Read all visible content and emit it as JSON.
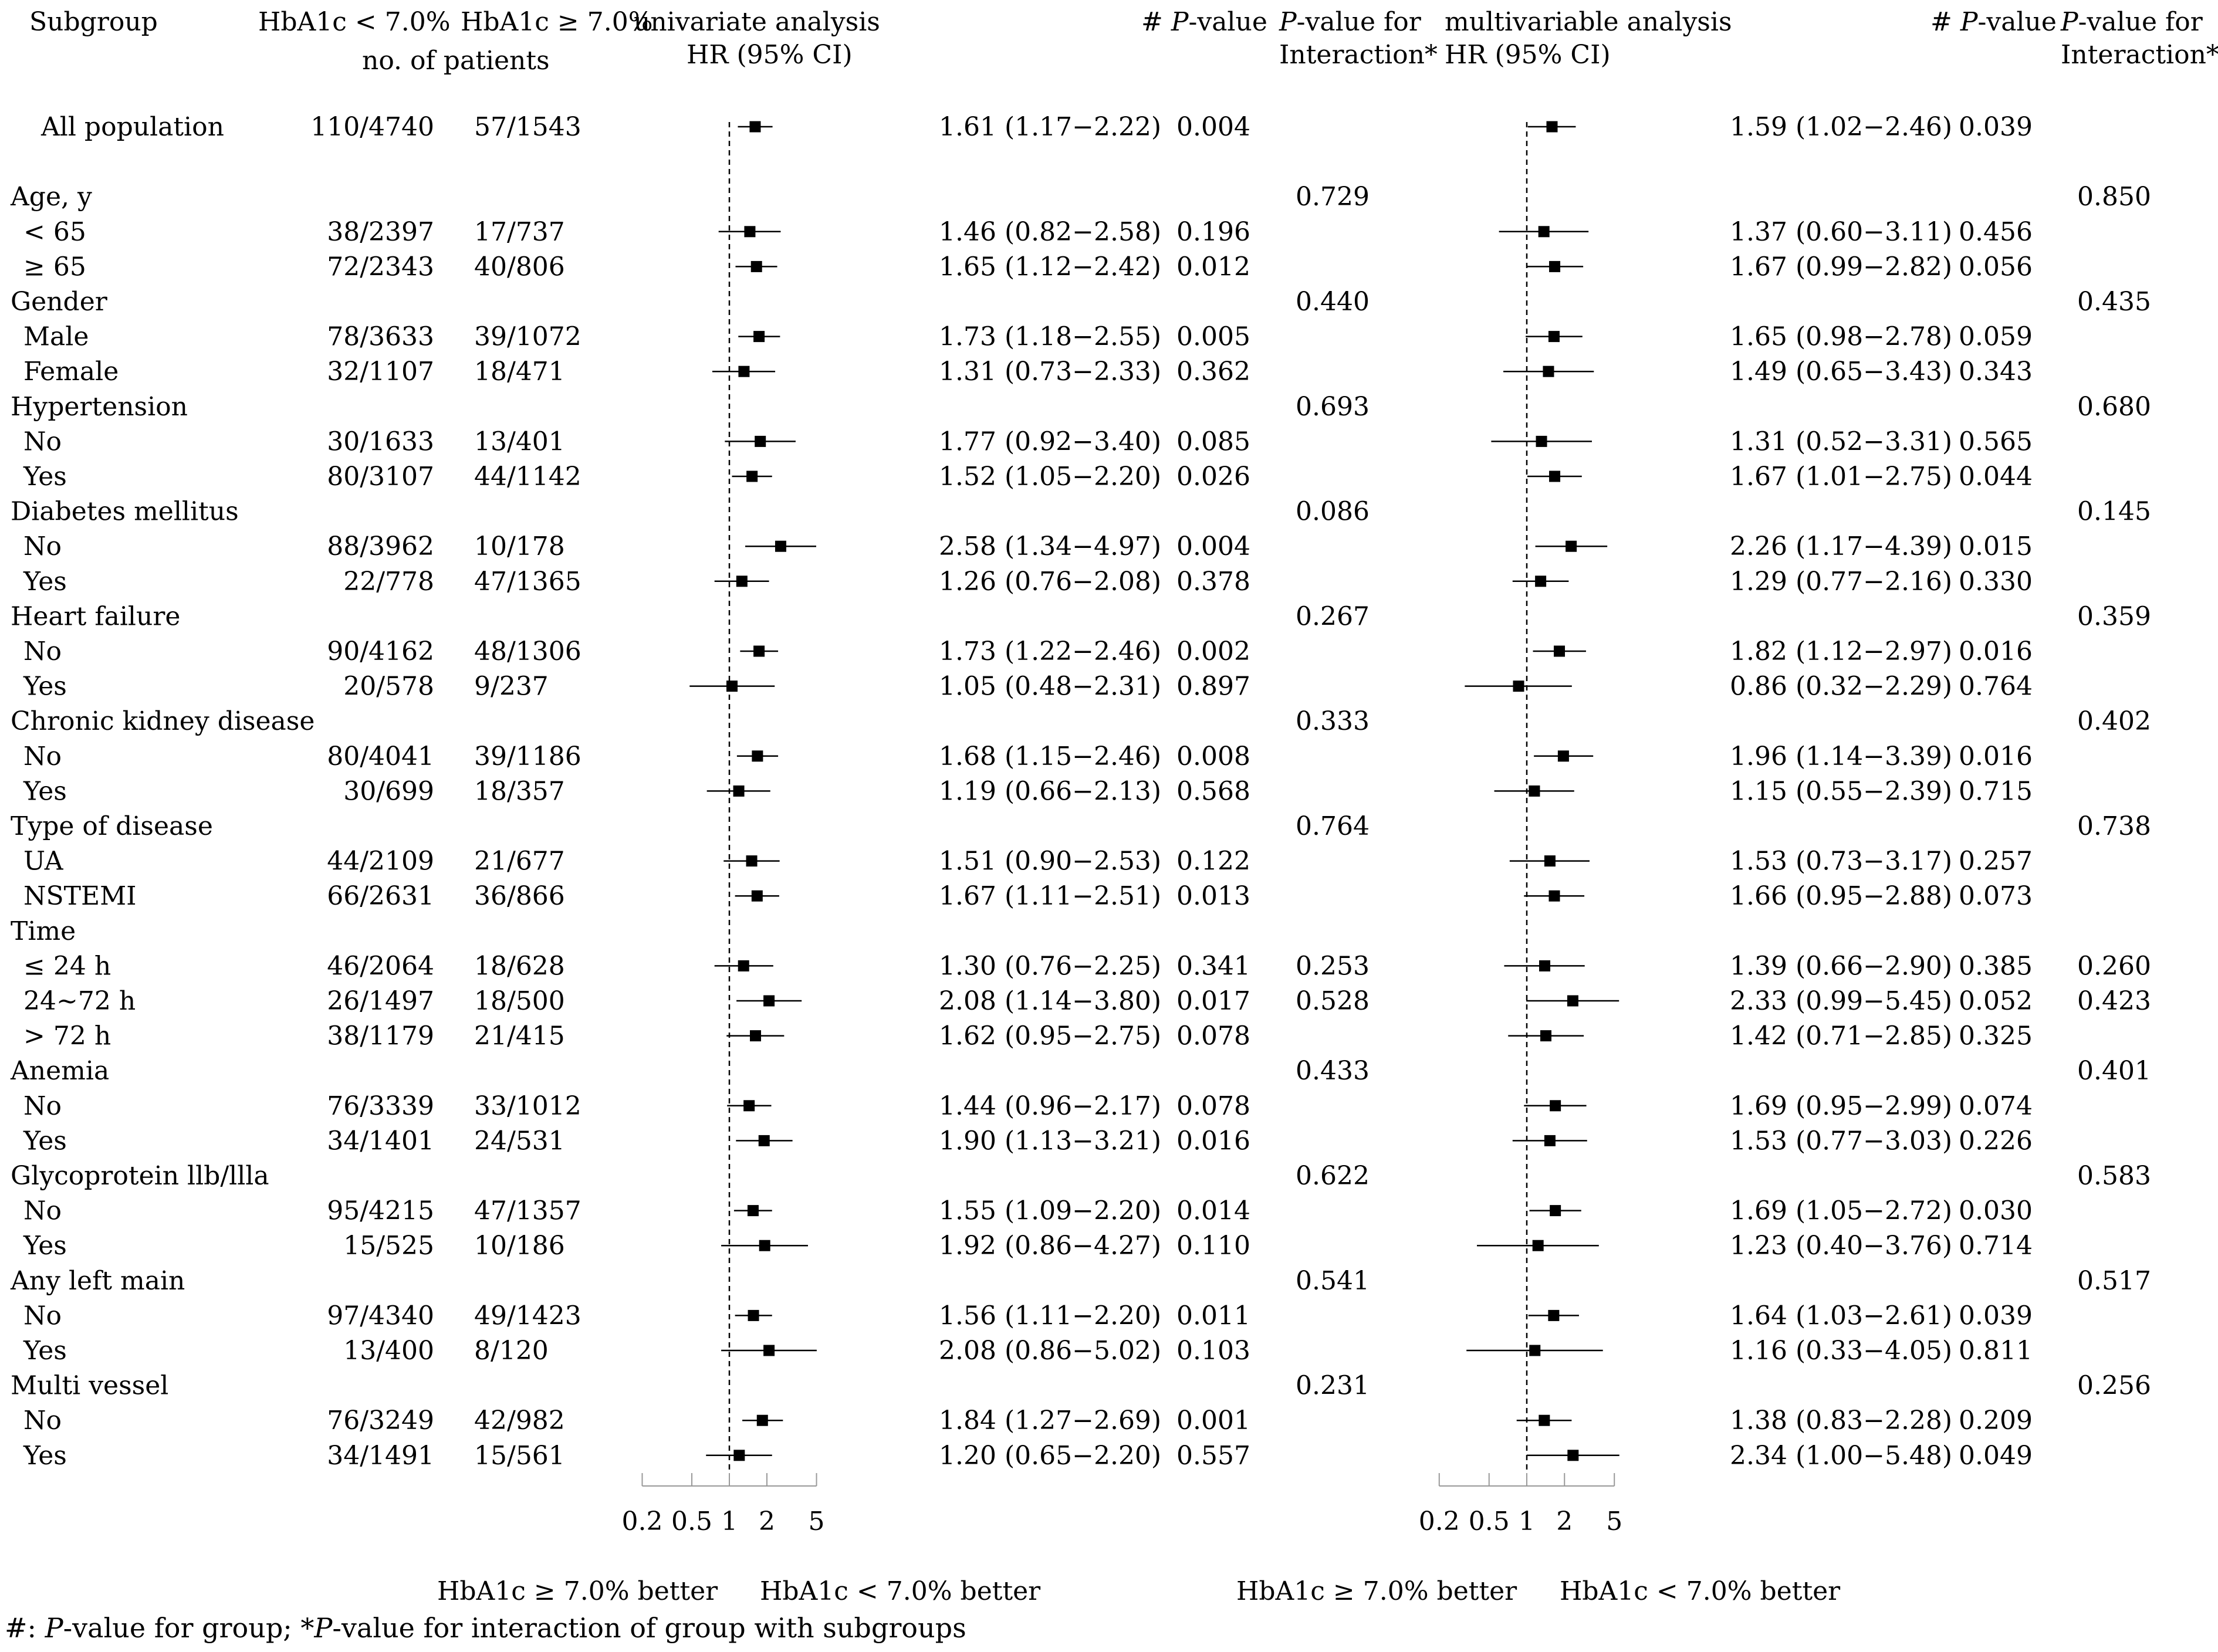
{
  "headers": {
    "subgroup": "Subgroup",
    "hba1c_low": "HbA1c < 7.0%",
    "hba1c_high": "HbA1c ≥ 7.0%",
    "no_patients": "no. of patients",
    "uni_title": "univariate analysis",
    "uni_hr": "HR (95% CI)",
    "pval_hash": "# ",
    "pval_P": "P",
    "pval_rest": "-value",
    "pint_P": "P",
    "pint_rest": "-value for",
    "pint_line2": "Interaction*",
    "multi_title": "multivariable analysis",
    "multi_hr": "HR (95% CI)"
  },
  "footer": {
    "hash": "#: ",
    "p1": "P",
    "text1": "-value for group; *",
    "p2": "P",
    "text2": "-value for interaction of group with subgroups"
  },
  "chart_data": {
    "type": "forest",
    "scale": "log",
    "axis_ticks": [
      0.2,
      0.5,
      1,
      2,
      5
    ],
    "axis_tick_labels": [
      "0.2",
      "0.5",
      "1",
      "2",
      "5"
    ],
    "reference_line": 1,
    "panels": [
      {
        "title": "univariate analysis",
        "left_label": "HbA1c ≥ 7.0% better",
        "right_label": "HbA1c < 7.0% better"
      },
      {
        "title": "multivariable analysis",
        "left_label": "HbA1c ≥ 7.0% better",
        "right_label": "HbA1c < 7.0% better"
      }
    ],
    "rows": [
      {
        "label": "All population",
        "indent": 1,
        "low": "110/4740",
        "high": "57/1543",
        "uni": {
          "hr": 1.61,
          "lo": 1.17,
          "hi": 2.22,
          "ci": "1.61 (1.17−2.22)",
          "p": "0.004"
        },
        "uni_int": "",
        "multi": {
          "hr": 1.59,
          "lo": 1.02,
          "hi": 2.46,
          "ci": "1.59 (1.02−2.46)",
          "p": "0.039"
        },
        "multi_int": ""
      },
      {
        "label": "",
        "spacer": true
      },
      {
        "label": "Age, y",
        "header": true,
        "uni_int": "0.729",
        "multi_int": "0.850"
      },
      {
        "label": "< 65",
        "indent": 2,
        "low": "38/2397",
        "high": "17/737",
        "uni": {
          "hr": 1.46,
          "lo": 0.82,
          "hi": 2.58,
          "ci": "1.46 (0.82−2.58)",
          "p": "0.196"
        },
        "uni_int": "",
        "multi": {
          "hr": 1.37,
          "lo": 0.6,
          "hi": 3.11,
          "ci": "1.37 (0.60−3.11)",
          "p": "0.456"
        },
        "multi_int": ""
      },
      {
        "label": "≥ 65",
        "indent": 2,
        "low": "72/2343",
        "high": "40/806",
        "uni": {
          "hr": 1.65,
          "lo": 1.12,
          "hi": 2.42,
          "ci": "1.65 (1.12−2.42)",
          "p": "0.012"
        },
        "uni_int": "",
        "multi": {
          "hr": 1.67,
          "lo": 0.99,
          "hi": 2.82,
          "ci": "1.67 (0.99−2.82)",
          "p": "0.056"
        },
        "multi_int": ""
      },
      {
        "label": "Gender",
        "header": true,
        "uni_int": "0.440",
        "multi_int": "0.435"
      },
      {
        "label": "Male",
        "indent": 2,
        "low": "78/3633",
        "high": "39/1072",
        "uni": {
          "hr": 1.73,
          "lo": 1.18,
          "hi": 2.55,
          "ci": "1.73 (1.18−2.55)",
          "p": "0.005"
        },
        "uni_int": "",
        "multi": {
          "hr": 1.65,
          "lo": 0.98,
          "hi": 2.78,
          "ci": "1.65 (0.98−2.78)",
          "p": "0.059"
        },
        "multi_int": ""
      },
      {
        "label": "Female",
        "indent": 2,
        "low": "32/1107",
        "high": "18/471",
        "uni": {
          "hr": 1.31,
          "lo": 0.73,
          "hi": 2.33,
          "ci": "1.31 (0.73−2.33)",
          "p": "0.362"
        },
        "uni_int": "",
        "multi": {
          "hr": 1.49,
          "lo": 0.65,
          "hi": 3.43,
          "ci": "1.49 (0.65−3.43)",
          "p": "0.343"
        },
        "multi_int": ""
      },
      {
        "label": "Hypertension",
        "header": true,
        "uni_int": "0.693",
        "multi_int": "0.680"
      },
      {
        "label": "No",
        "indent": 2,
        "low": "30/1633",
        "high": "13/401",
        "uni": {
          "hr": 1.77,
          "lo": 0.92,
          "hi": 3.4,
          "ci": "1.77 (0.92−3.40)",
          "p": "0.085"
        },
        "uni_int": "",
        "multi": {
          "hr": 1.31,
          "lo": 0.52,
          "hi": 3.31,
          "ci": "1.31 (0.52−3.31)",
          "p": "0.565"
        },
        "multi_int": ""
      },
      {
        "label": "Yes",
        "indent": 2,
        "low": "80/3107",
        "high": "44/1142",
        "uni": {
          "hr": 1.52,
          "lo": 1.05,
          "hi": 2.2,
          "ci": "1.52 (1.05−2.20)",
          "p": "0.026"
        },
        "uni_int": "",
        "multi": {
          "hr": 1.67,
          "lo": 1.01,
          "hi": 2.75,
          "ci": "1.67 (1.01−2.75)",
          "p": "0.044"
        },
        "multi_int": ""
      },
      {
        "label": "Diabetes mellitus",
        "header": true,
        "uni_int": "0.086",
        "multi_int": "0.145"
      },
      {
        "label": "No",
        "indent": 2,
        "low": "88/3962",
        "high": "10/178",
        "uni": {
          "hr": 2.58,
          "lo": 1.34,
          "hi": 4.97,
          "ci": "2.58 (1.34−4.97)",
          "p": "0.004"
        },
        "uni_int": "",
        "multi": {
          "hr": 2.26,
          "lo": 1.17,
          "hi": 4.39,
          "ci": "2.26 (1.17−4.39)",
          "p": "0.015"
        },
        "multi_int": ""
      },
      {
        "label": "Yes",
        "indent": 2,
        "low": "22/778",
        "high": "47/1365",
        "uni": {
          "hr": 1.26,
          "lo": 0.76,
          "hi": 2.08,
          "ci": "1.26 (0.76−2.08)",
          "p": "0.378"
        },
        "uni_int": "",
        "multi": {
          "hr": 1.29,
          "lo": 0.77,
          "hi": 2.16,
          "ci": "1.29 (0.77−2.16)",
          "p": "0.330"
        },
        "multi_int": ""
      },
      {
        "label": "Heart failure",
        "header": true,
        "uni_int": "0.267",
        "multi_int": "0.359"
      },
      {
        "label": "No",
        "indent": 2,
        "low": "90/4162",
        "high": "48/1306",
        "uni": {
          "hr": 1.73,
          "lo": 1.22,
          "hi": 2.46,
          "ci": "1.73 (1.22−2.46)",
          "p": "0.002"
        },
        "uni_int": "",
        "multi": {
          "hr": 1.82,
          "lo": 1.12,
          "hi": 2.97,
          "ci": "1.82 (1.12−2.97)",
          "p": "0.016"
        },
        "multi_int": ""
      },
      {
        "label": "Yes",
        "indent": 2,
        "low": "20/578",
        "high": "9/237",
        "uni": {
          "hr": 1.05,
          "lo": 0.48,
          "hi": 2.31,
          "ci": "1.05 (0.48−2.31)",
          "p": "0.897"
        },
        "uni_int": "",
        "multi": {
          "hr": 0.86,
          "lo": 0.32,
          "hi": 2.29,
          "ci": "0.86 (0.32−2.29)",
          "p": "0.764"
        },
        "multi_int": ""
      },
      {
        "label": "Chronic kidney disease",
        "header": true,
        "uni_int": "0.333",
        "multi_int": "0.402"
      },
      {
        "label": "No",
        "indent": 2,
        "low": "80/4041",
        "high": "39/1186",
        "uni": {
          "hr": 1.68,
          "lo": 1.15,
          "hi": 2.46,
          "ci": "1.68 (1.15−2.46)",
          "p": "0.008"
        },
        "uni_int": "",
        "multi": {
          "hr": 1.96,
          "lo": 1.14,
          "hi": 3.39,
          "ci": "1.96 (1.14−3.39)",
          "p": "0.016"
        },
        "multi_int": ""
      },
      {
        "label": "Yes",
        "indent": 2,
        "low": "30/699",
        "high": "18/357",
        "uni": {
          "hr": 1.19,
          "lo": 0.66,
          "hi": 2.13,
          "ci": "1.19 (0.66−2.13)",
          "p": "0.568"
        },
        "uni_int": "",
        "multi": {
          "hr": 1.15,
          "lo": 0.55,
          "hi": 2.39,
          "ci": "1.15 (0.55−2.39)",
          "p": "0.715"
        },
        "multi_int": ""
      },
      {
        "label": "Type of disease",
        "header": true,
        "uni_int": "0.764",
        "multi_int": "0.738"
      },
      {
        "label": "UA",
        "indent": 2,
        "low": "44/2109",
        "high": "21/677",
        "uni": {
          "hr": 1.51,
          "lo": 0.9,
          "hi": 2.53,
          "ci": "1.51 (0.90−2.53)",
          "p": "0.122"
        },
        "uni_int": "",
        "multi": {
          "hr": 1.53,
          "lo": 0.73,
          "hi": 3.17,
          "ci": "1.53 (0.73−3.17)",
          "p": "0.257"
        },
        "multi_int": ""
      },
      {
        "label": "NSTEMI",
        "indent": 2,
        "low": "66/2631",
        "high": "36/866",
        "uni": {
          "hr": 1.67,
          "lo": 1.11,
          "hi": 2.51,
          "ci": "1.67 (1.11−2.51)",
          "p": "0.013"
        },
        "uni_int": "",
        "multi": {
          "hr": 1.66,
          "lo": 0.95,
          "hi": 2.88,
          "ci": "1.66 (0.95−2.88)",
          "p": "0.073"
        },
        "multi_int": ""
      },
      {
        "label": "Time",
        "header": true,
        "uni_int": "",
        "multi_int": ""
      },
      {
        "label": "≤ 24 h",
        "indent": 2,
        "low": "46/2064",
        "high": "18/628",
        "uni": {
          "hr": 1.3,
          "lo": 0.76,
          "hi": 2.25,
          "ci": "1.30 (0.76−2.25)",
          "p": "0.341"
        },
        "uni_int": "0.253",
        "multi": {
          "hr": 1.39,
          "lo": 0.66,
          "hi": 2.9,
          "ci": "1.39 (0.66−2.90)",
          "p": "0.385"
        },
        "multi_int": "0.260"
      },
      {
        "label": "24~72 h",
        "indent": 2,
        "low": "26/1497",
        "high": "18/500",
        "uni": {
          "hr": 2.08,
          "lo": 1.14,
          "hi": 3.8,
          "ci": "2.08 (1.14−3.80)",
          "p": "0.017"
        },
        "uni_int": "0.528",
        "multi": {
          "hr": 2.33,
          "lo": 0.99,
          "hi": 5.45,
          "ci": "2.33 (0.99−5.45)",
          "p": "0.052"
        },
        "multi_int": "0.423"
      },
      {
        "label": "> 72 h",
        "indent": 2,
        "low": "38/1179",
        "high": "21/415",
        "uni": {
          "hr": 1.62,
          "lo": 0.95,
          "hi": 2.75,
          "ci": "1.62 (0.95−2.75)",
          "p": "0.078"
        },
        "uni_int": "",
        "multi": {
          "hr": 1.42,
          "lo": 0.71,
          "hi": 2.85,
          "ci": "1.42 (0.71−2.85)",
          "p": "0.325"
        },
        "multi_int": ""
      },
      {
        "label": "Anemia",
        "header": true,
        "uni_int": "0.433",
        "multi_int": "0.401"
      },
      {
        "label": "No",
        "indent": 2,
        "low": "76/3339",
        "high": "33/1012",
        "uni": {
          "hr": 1.44,
          "lo": 0.96,
          "hi": 2.17,
          "ci": "1.44 (0.96−2.17)",
          "p": "0.078"
        },
        "uni_int": "",
        "multi": {
          "hr": 1.69,
          "lo": 0.95,
          "hi": 2.99,
          "ci": "1.69 (0.95−2.99)",
          "p": "0.074"
        },
        "multi_int": ""
      },
      {
        "label": "Yes",
        "indent": 2,
        "low": "34/1401",
        "high": "24/531",
        "uni": {
          "hr": 1.9,
          "lo": 1.13,
          "hi": 3.21,
          "ci": "1.90 (1.13−3.21)",
          "p": "0.016"
        },
        "uni_int": "",
        "multi": {
          "hr": 1.53,
          "lo": 0.77,
          "hi": 3.03,
          "ci": "1.53 (0.77−3.03)",
          "p": "0.226"
        },
        "multi_int": ""
      },
      {
        "label": "Glycoprotein llb/llla",
        "header": true,
        "uni_int": "0.622",
        "multi_int": "0.583"
      },
      {
        "label": "No",
        "indent": 2,
        "low": "95/4215",
        "high": "47/1357",
        "uni": {
          "hr": 1.55,
          "lo": 1.09,
          "hi": 2.2,
          "ci": "1.55 (1.09−2.20)",
          "p": "0.014"
        },
        "uni_int": "",
        "multi": {
          "hr": 1.69,
          "lo": 1.05,
          "hi": 2.72,
          "ci": "1.69 (1.05−2.72)",
          "p": "0.030"
        },
        "multi_int": ""
      },
      {
        "label": "Yes",
        "indent": 2,
        "low": "15/525",
        "high": "10/186",
        "uni": {
          "hr": 1.92,
          "lo": 0.86,
          "hi": 4.27,
          "ci": "1.92 (0.86−4.27)",
          "p": "0.110"
        },
        "uni_int": "",
        "multi": {
          "hr": 1.23,
          "lo": 0.4,
          "hi": 3.76,
          "ci": "1.23 (0.40−3.76)",
          "p": "0.714"
        },
        "multi_int": ""
      },
      {
        "label": "Any left main",
        "header": true,
        "uni_int": "0.541",
        "multi_int": "0.517"
      },
      {
        "label": "No",
        "indent": 2,
        "low": "97/4340",
        "high": "49/1423",
        "uni": {
          "hr": 1.56,
          "lo": 1.11,
          "hi": 2.2,
          "ci": "1.56 (1.11−2.20)",
          "p": "0.011"
        },
        "uni_int": "",
        "multi": {
          "hr": 1.64,
          "lo": 1.03,
          "hi": 2.61,
          "ci": "1.64 (1.03−2.61)",
          "p": "0.039"
        },
        "multi_int": ""
      },
      {
        "label": "Yes",
        "indent": 2,
        "low": "13/400",
        "high": "8/120",
        "uni": {
          "hr": 2.08,
          "lo": 0.86,
          "hi": 5.02,
          "ci": "2.08 (0.86−5.02)",
          "p": "0.103"
        },
        "uni_int": "",
        "multi": {
          "hr": 1.16,
          "lo": 0.33,
          "hi": 4.05,
          "ci": "1.16 (0.33−4.05)",
          "p": "0.811"
        },
        "multi_int": ""
      },
      {
        "label": "Multi vessel",
        "header": true,
        "uni_int": "0.231",
        "multi_int": "0.256"
      },
      {
        "label": "No",
        "indent": 2,
        "low": "76/3249",
        "high": "42/982",
        "uni": {
          "hr": 1.84,
          "lo": 1.27,
          "hi": 2.69,
          "ci": "1.84 (1.27−2.69)",
          "p": "0.001"
        },
        "uni_int": "",
        "multi": {
          "hr": 1.38,
          "lo": 0.83,
          "hi": 2.28,
          "ci": "1.38 (0.83−2.28)",
          "p": "0.209"
        },
        "multi_int": ""
      },
      {
        "label": "Yes",
        "indent": 2,
        "low": "34/1491",
        "high": "15/561",
        "uni": {
          "hr": 1.2,
          "lo": 0.65,
          "hi": 2.2,
          "ci": "1.20 (0.65−2.20)",
          "p": "0.557"
        },
        "uni_int": "",
        "multi": {
          "hr": 2.34,
          "lo": 1.0,
          "hi": 5.48,
          "ci": "2.34 (1.00−5.48)",
          "p": "0.049"
        },
        "multi_int": ""
      }
    ]
  }
}
